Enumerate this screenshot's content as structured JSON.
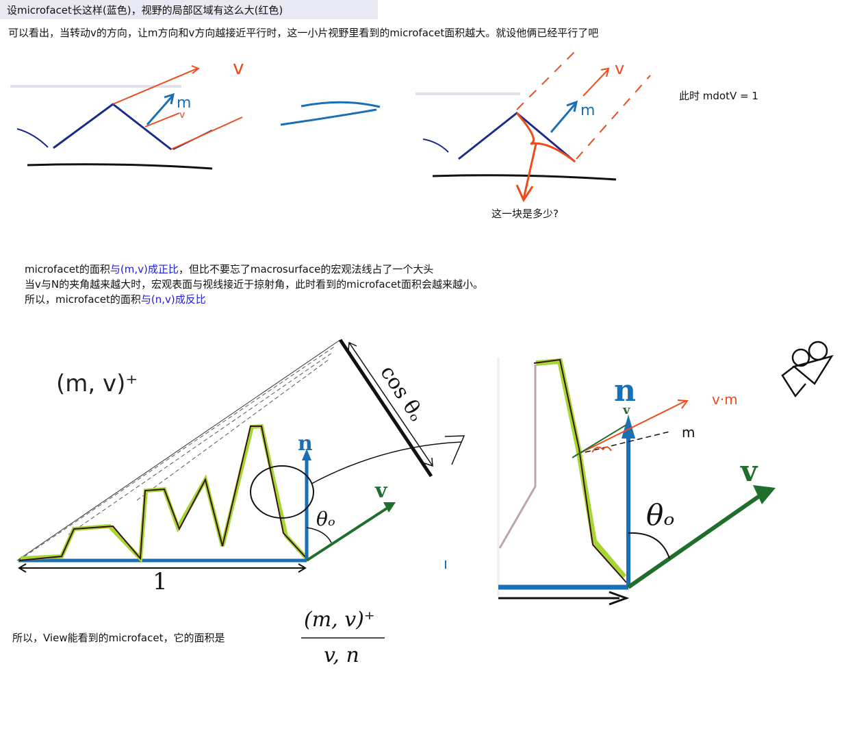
{
  "header": {
    "line1": "设microfacet长这样(蓝色)，视野的局部区域有这么大(红色)",
    "line2": "可以看出，当转动v的方向，让m方向和v方向越接近平行时，这一小片视野里看到的microfacet面积越大。就设他俩已经平行了吧"
  },
  "sketch_top": {
    "label_v": "v",
    "label_m": "m",
    "label_v_small": "v",
    "label_v_right": "v",
    "label_m_right": "m",
    "mdotv": "此时 mdotV = 1",
    "question": "这一块是多少?"
  },
  "explanation": {
    "line1_pre": "microfacet的面积",
    "line1_hl": "与(m,v)成正比",
    "line1_post": "，但比不要忘了macrosurface的宏观法线占了一个大头",
    "line2": "当v与N的夹角越来越大时，宏观表面与视线接近于掠射角，此时看到的microfacet面积会越来越小。",
    "line3_pre": "所以，microfacet的面积",
    "line3_hl": "与(n,v)成反比"
  },
  "figure_left": {
    "mv_plus": "(m, v)⁺",
    "cos_label": "cos θₒ",
    "n_label": "n",
    "v_label": "v",
    "theta_label": "θₒ",
    "one_label": "1"
  },
  "figure_right": {
    "n_label": "n",
    "v_small": "v",
    "vm_label": "v·m",
    "m_label": "m",
    "v_label": "v",
    "theta_label": "θₒ"
  },
  "conclusion": {
    "text": "所以，View能看到的microfacet，它的面积是",
    "numerator": "(m, v)⁺",
    "denominator": "v, n"
  },
  "colors": {
    "blue": "#1b6fb5",
    "dark_blue": "#1a2a8a",
    "green": "#1f6e2c",
    "orange": "#f04a1a",
    "lime": "#a6d631",
    "highlight": "#2020d8"
  }
}
